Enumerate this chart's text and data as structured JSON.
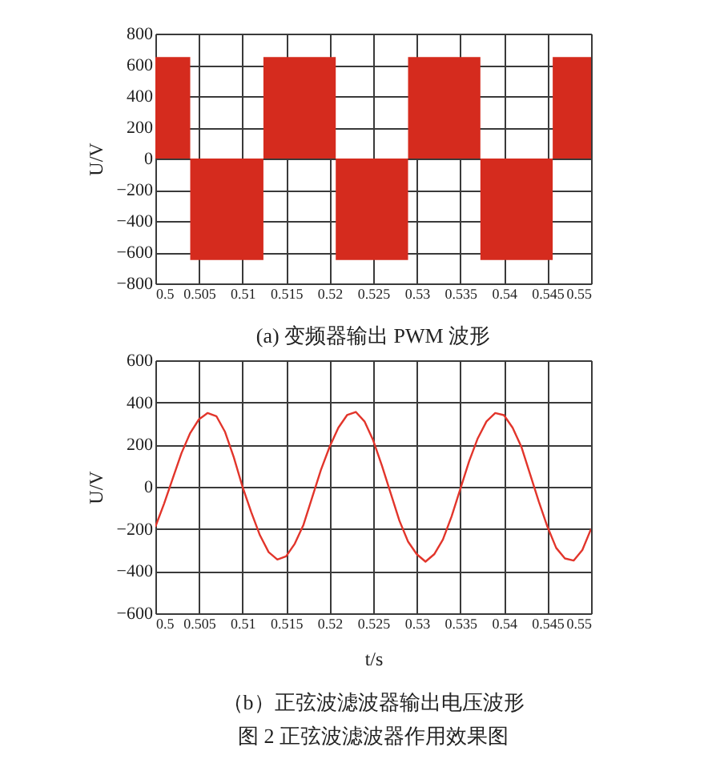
{
  "chart_data": [
    {
      "type": "area",
      "title": "(a) 变频器输出 PWM 波形",
      "ylabel": "U/V",
      "grid": true,
      "series": [
        {
          "color": "#d52b1e",
          "x": [
            0.5,
            0.504
          ],
          "values": [
            650,
            650
          ]
        },
        {
          "color": "#d52b1e",
          "x": [
            0.504,
            0.5124
          ],
          "values": [
            -650,
            -650
          ]
        },
        {
          "color": "#d52b1e",
          "x": [
            0.5124,
            0.5207
          ],
          "values": [
            650,
            650
          ]
        },
        {
          "color": "#d52b1e",
          "x": [
            0.5207,
            0.529
          ],
          "values": [
            -650,
            -650
          ]
        },
        {
          "color": "#d52b1e",
          "x": [
            0.529,
            0.5373
          ],
          "values": [
            650,
            650
          ]
        },
        {
          "color": "#d52b1e",
          "x": [
            0.5373,
            0.5456
          ],
          "values": [
            -650,
            -650
          ]
        },
        {
          "color": "#d52b1e",
          "x": [
            0.5456,
            0.55
          ],
          "values": [
            650,
            650
          ]
        }
      ],
      "xlim": [
        0.5,
        0.55
      ],
      "xticks": [
        0.5,
        0.505,
        0.51,
        0.515,
        0.52,
        0.525,
        0.53,
        0.535,
        0.54,
        0.545,
        0.55
      ],
      "ylim": [
        -800,
        800
      ],
      "yticks": [
        -800,
        -600,
        -400,
        -200,
        0,
        200,
        400,
        600,
        800
      ]
    },
    {
      "type": "line",
      "title": "（b）正弦波滤波器输出电压波形",
      "annotations": [
        "图 2 正弦波滤波器作用效果图"
      ],
      "xlabel": "t/s",
      "ylabel": "U/V",
      "color": "#e2352b",
      "grid": true,
      "x": [
        0.5,
        0.501,
        0.502,
        0.503,
        0.504,
        0.505,
        0.506,
        0.507,
        0.508,
        0.509,
        0.51,
        0.511,
        0.512,
        0.513,
        0.514,
        0.515,
        0.516,
        0.517,
        0.518,
        0.519,
        0.52,
        0.521,
        0.522,
        0.523,
        0.524,
        0.525,
        0.526,
        0.527,
        0.528,
        0.529,
        0.53,
        0.531,
        0.532,
        0.533,
        0.534,
        0.535,
        0.536,
        0.537,
        0.538,
        0.539,
        0.54,
        0.541,
        0.542,
        0.543,
        0.544,
        0.545,
        0.546,
        0.547,
        0.548,
        0.549,
        0.55
      ],
      "values": [
        -190,
        -80,
        40,
        160,
        255,
        320,
        350,
        335,
        260,
        140,
        0,
        -120,
        -230,
        -310,
        -345,
        -330,
        -270,
        -180,
        -50,
        80,
        190,
        280,
        340,
        355,
        310,
        220,
        100,
        -30,
        -160,
        -260,
        -320,
        -355,
        -320,
        -250,
        -140,
        -10,
        120,
        230,
        310,
        350,
        340,
        280,
        190,
        60,
        -70,
        -190,
        -290,
        -340,
        -350,
        -300,
        -200
      ],
      "xlim": [
        0.5,
        0.55
      ],
      "xticks": [
        0.5,
        0.505,
        0.51,
        0.515,
        0.52,
        0.525,
        0.53,
        0.535,
        0.54,
        0.545,
        0.55
      ],
      "ylim": [
        -600,
        600
      ],
      "yticks": [
        -600,
        -400,
        -200,
        0,
        200,
        400,
        600
      ]
    }
  ]
}
